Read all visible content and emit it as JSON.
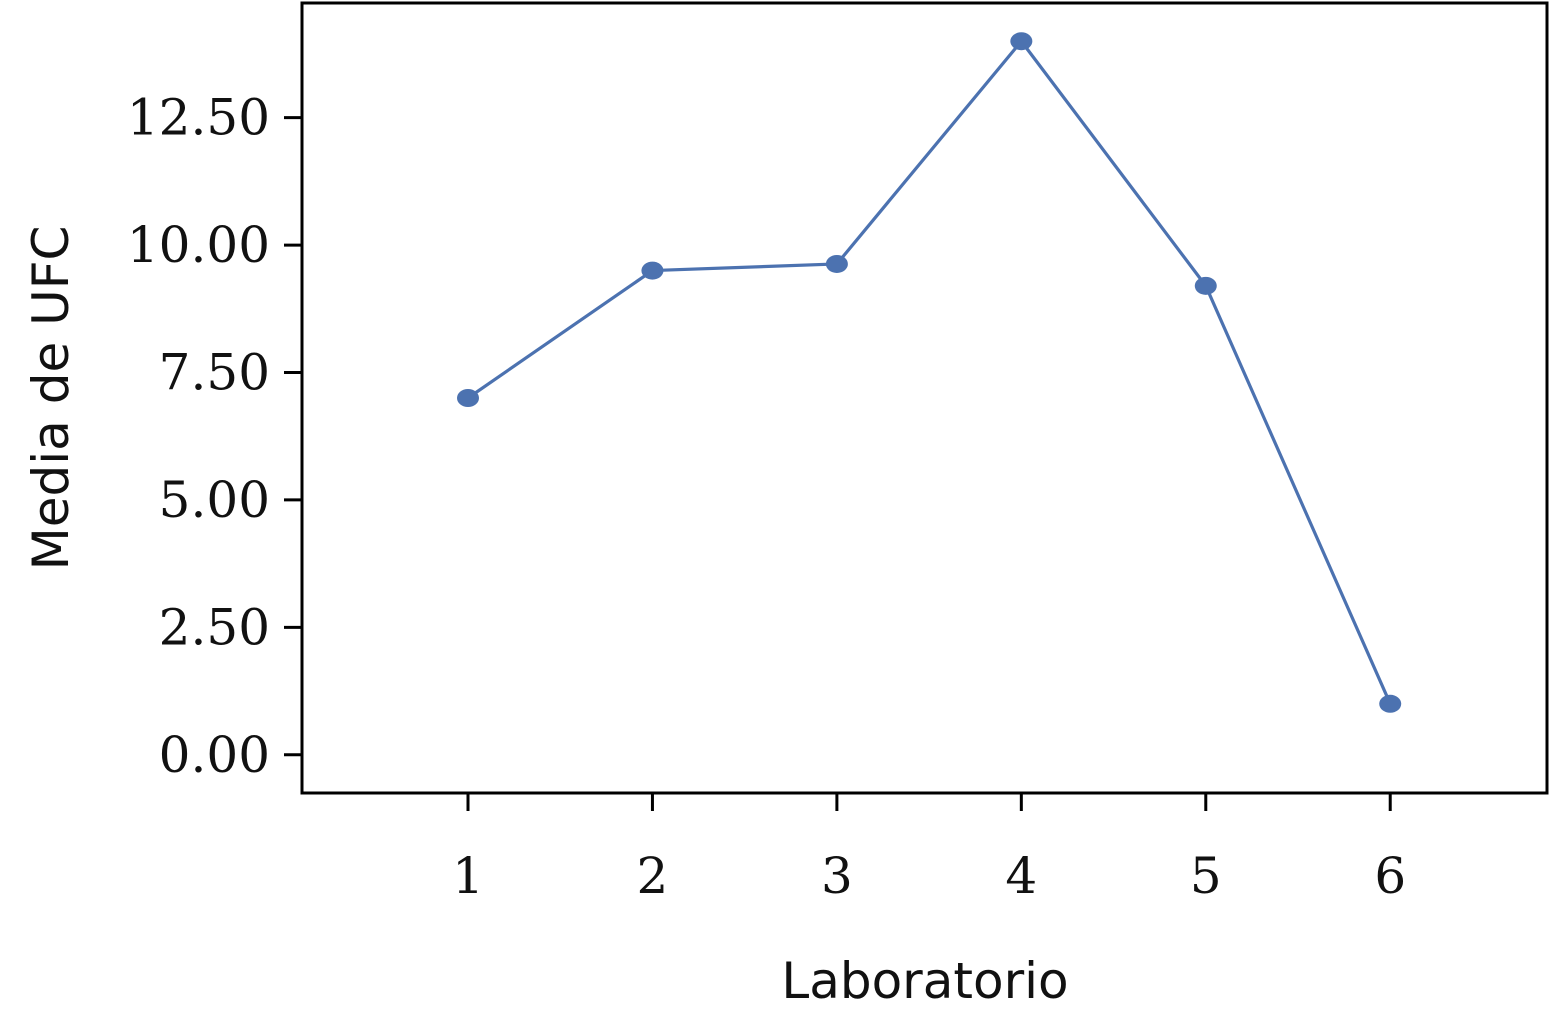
{
  "chart_data": {
    "type": "line",
    "title": "",
    "xlabel": "Laboratorio",
    "ylabel": "Media de UFC",
    "x": [
      1,
      2,
      3,
      4,
      5,
      6
    ],
    "x_tick_labels": [
      "1",
      "2",
      "3",
      "4",
      "5",
      "6"
    ],
    "y_ticks": [
      0,
      2.5,
      5,
      7.5,
      10,
      12.5
    ],
    "y_tick_labels": [
      "0.00",
      "2.50",
      "5.00",
      "7.50",
      "10.00",
      "12.50"
    ],
    "xlim": [
      0.1,
      6.85
    ],
    "ylim": [
      -0.75,
      14.75
    ],
    "series": [
      {
        "values": [
          7.0,
          9.5,
          9.63,
          14.0,
          9.2,
          1.0
        ],
        "color": "#4c72b0"
      }
    ],
    "grid": false,
    "legend": "none"
  }
}
